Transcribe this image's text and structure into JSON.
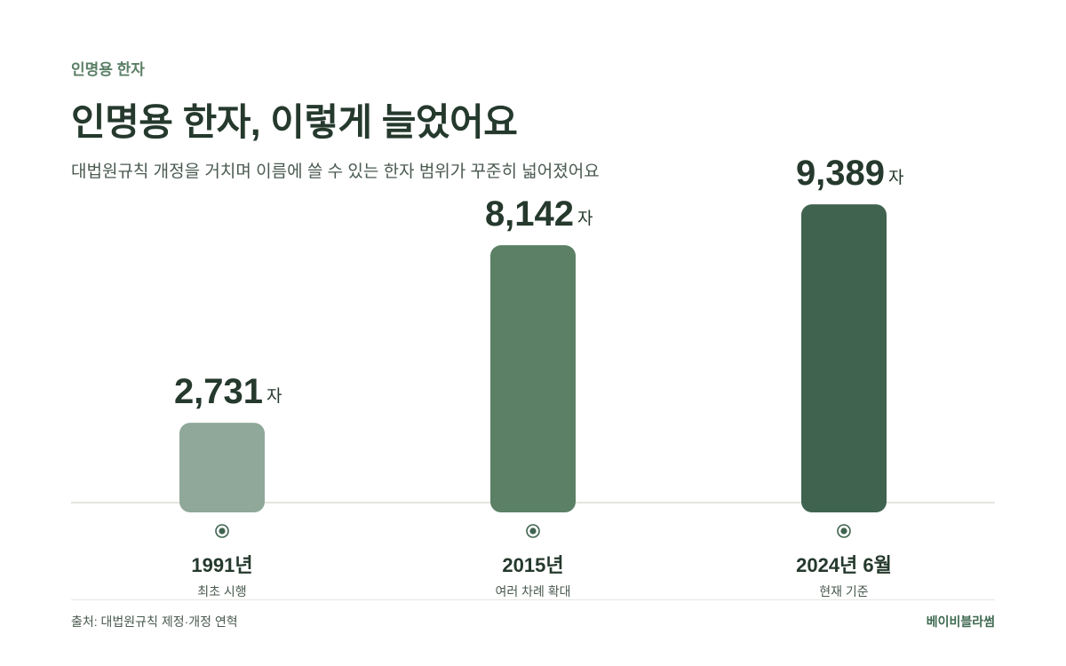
{
  "header": {
    "eyebrow": "인명용 한자",
    "title": "인명용 한자, 이렇게 늘었어요",
    "subtitle": "대법원규칙 개정을 거치며 이름에 쓸 수 있는 한자 범위가 꾸준히 넓어졌어요"
  },
  "chart_data": {
    "type": "bar",
    "categories": [
      "1991년",
      "2015년",
      "2024년 6월"
    ],
    "descriptions": [
      "최초 시행",
      "여러 차례 확대",
      "현재 기준"
    ],
    "values": [
      2731,
      8142,
      9389
    ],
    "value_labels": [
      "2,731",
      "8,142",
      "9,389"
    ],
    "unit": "자",
    "colors": [
      "#8fa899",
      "#5b8066",
      "#3f634f"
    ],
    "grid": false,
    "legend": "none"
  },
  "footer": {
    "source": "출처: 대법원규칙 제정·개정 연혁",
    "brand": "베이비블라썸"
  },
  "colors": {
    "title": "#25392d",
    "accent": "#5b7f66",
    "baseline": "#d9dfd2",
    "marker": "#3f634f"
  }
}
